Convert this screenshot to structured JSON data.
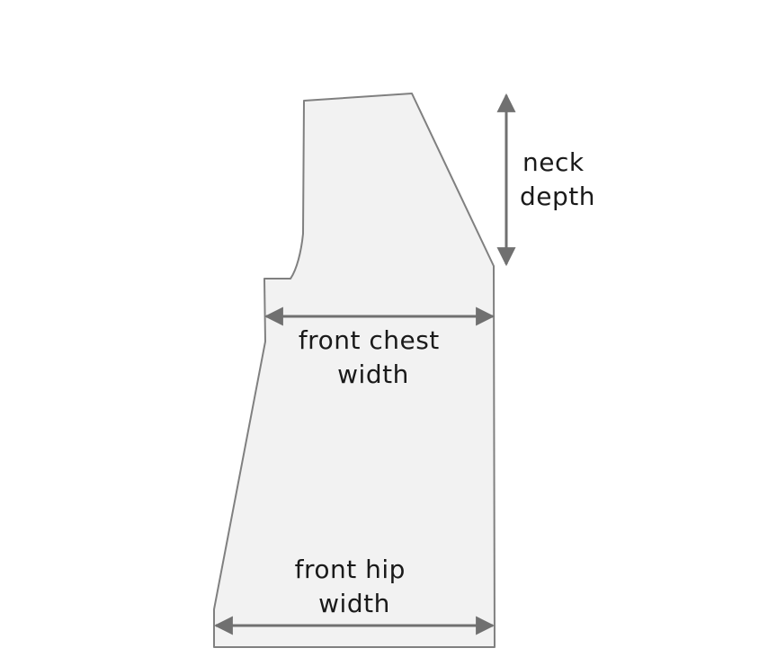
{
  "labels": {
    "neck_depth": [
      "neck",
      "depth"
    ],
    "front_chest_width": [
      "front chest",
      "width"
    ],
    "front_hip_width": [
      "front hip",
      "width"
    ]
  },
  "colors": {
    "shape_fill": "#f2f2f2",
    "shape_stroke": "#808080",
    "arrow": "#707070",
    "text": "#1a1a1a"
  }
}
